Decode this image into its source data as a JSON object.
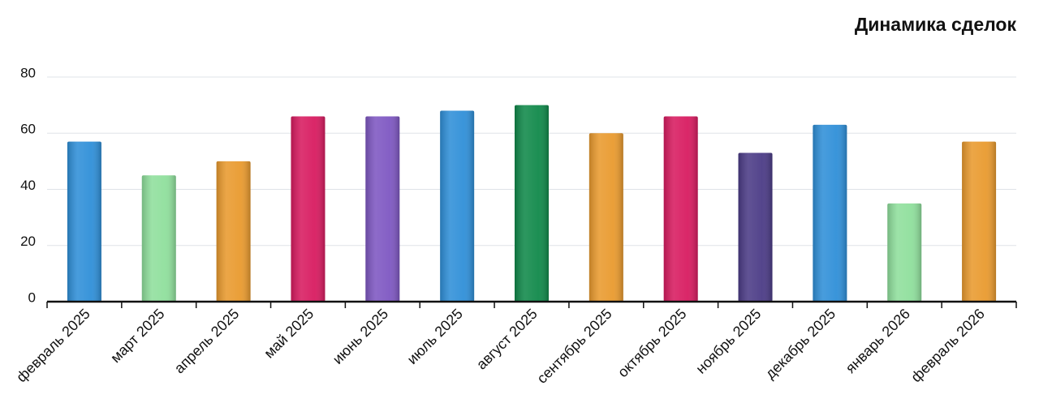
{
  "chart_data": {
    "type": "bar",
    "title": "Динамика сделок",
    "categories": [
      "февраль 2025",
      "март 2025",
      "апрель 2025",
      "май 2025",
      "июнь 2025",
      "июль 2025",
      "август 2025",
      "сентябрь 2025",
      "октябрь 2025",
      "ноябрь 2025",
      "декабрь 2025",
      "январь 2026",
      "февраль 2026"
    ],
    "values": [
      57,
      45,
      50,
      66,
      66,
      68,
      70,
      60,
      66,
      53,
      63,
      35,
      57
    ],
    "colors": [
      "#2f8fd8",
      "#8fdf9c",
      "#e99a2e",
      "#d81b60",
      "#7e57c2",
      "#2f8fd8",
      "#10894a",
      "#e99a2e",
      "#d81b60",
      "#4b3b86",
      "#2f8fd8",
      "#8fdf9c",
      "#e99a2e"
    ],
    "ylim": [
      0,
      80
    ],
    "yticks": [
      0,
      20,
      40,
      60,
      80
    ],
    "grid": true
  }
}
